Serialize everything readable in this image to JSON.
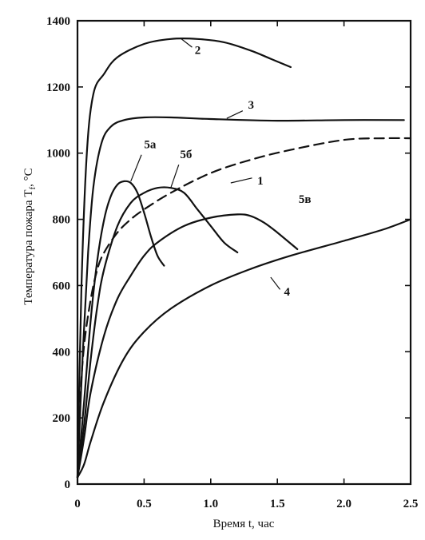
{
  "chart_data": {
    "type": "line",
    "xlabel": "Время t, час",
    "ylabel": "Температура пожара T",
    "ylabel_sub": "f",
    "ylabel_unit": ", °C",
    "xlim": [
      0,
      2.5
    ],
    "ylim": [
      0,
      1400
    ],
    "x_ticks": [
      "0",
      "0.5",
      "1.0",
      "1.5",
      "2.0",
      "2.5"
    ],
    "y_ticks": [
      "0",
      "200",
      "400",
      "600",
      "800",
      "1000",
      "1200",
      "1400"
    ],
    "grid": false,
    "series": [
      {
        "name": "1",
        "dashed": true,
        "x": [
          0.0,
          0.02,
          0.05,
          0.1,
          0.15,
          0.2,
          0.3,
          0.4,
          0.5,
          0.7,
          1.0,
          1.3,
          1.6,
          2.0,
          2.3,
          2.5
        ],
        "y": [
          20,
          250,
          420,
          560,
          650,
          700,
          760,
          800,
          830,
          880,
          940,
          980,
          1010,
          1040,
          1045,
          1045
        ]
      },
      {
        "name": "2",
        "dashed": false,
        "x": [
          0.0,
          0.03,
          0.07,
          0.12,
          0.2,
          0.3,
          0.5,
          0.7,
          0.9,
          1.1,
          1.3,
          1.45,
          1.6
        ],
        "y": [
          20,
          600,
          1000,
          1180,
          1240,
          1290,
          1330,
          1345,
          1345,
          1335,
          1310,
          1285,
          1260
        ]
      },
      {
        "name": "3",
        "dashed": false,
        "x": [
          0.0,
          0.04,
          0.08,
          0.12,
          0.18,
          0.25,
          0.35,
          0.5,
          0.7,
          1.0,
          1.5,
          2.0,
          2.45
        ],
        "y": [
          20,
          400,
          700,
          900,
          1030,
          1080,
          1100,
          1108,
          1108,
          1103,
          1098,
          1100,
          1100
        ]
      },
      {
        "name": "4",
        "dashed": false,
        "x": [
          0.0,
          0.05,
          0.1,
          0.2,
          0.35,
          0.5,
          0.7,
          1.0,
          1.3,
          1.6,
          2.0,
          2.3,
          2.5
        ],
        "y": [
          20,
          60,
          130,
          250,
          380,
          460,
          530,
          600,
          650,
          690,
          735,
          770,
          800
        ]
      },
      {
        "name": "5а",
        "dashed": false,
        "x": [
          0.0,
          0.05,
          0.1,
          0.15,
          0.2,
          0.25,
          0.3,
          0.35,
          0.4,
          0.45,
          0.5,
          0.55,
          0.6,
          0.65
        ],
        "y": [
          20,
          250,
          500,
          680,
          800,
          870,
          905,
          915,
          910,
          880,
          820,
          750,
          690,
          660
        ]
      },
      {
        "name": "5б",
        "dashed": false,
        "x": [
          0.0,
          0.05,
          0.1,
          0.15,
          0.2,
          0.3,
          0.4,
          0.5,
          0.6,
          0.7,
          0.8,
          0.9,
          1.0,
          1.1,
          1.2
        ],
        "y": [
          20,
          180,
          380,
          540,
          650,
          780,
          850,
          880,
          895,
          895,
          880,
          830,
          780,
          730,
          700
        ]
      },
      {
        "name": "5в",
        "dashed": false,
        "x": [
          0.0,
          0.05,
          0.1,
          0.2,
          0.3,
          0.4,
          0.5,
          0.6,
          0.8,
          1.0,
          1.2,
          1.3,
          1.4,
          1.5,
          1.65
        ],
        "y": [
          20,
          140,
          280,
          450,
          560,
          630,
          690,
          730,
          780,
          805,
          815,
          810,
          790,
          760,
          710
        ]
      }
    ]
  }
}
